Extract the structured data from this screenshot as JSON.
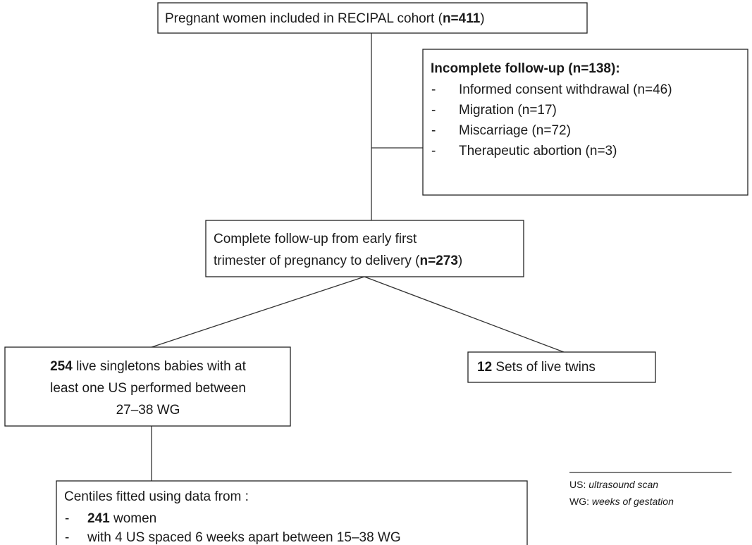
{
  "nodes": [
    {
      "parts": [
        "Pregnant women included in RECIPAL cohort (",
        "n=411",
        ")"
      ]
    },
    {
      "title": "Incomplete follow-up (n=138):",
      "bullet": "-",
      "items": [
        "Informed consent withdrawal (n=46)",
        "Migration (n=17)",
        "Miscarriage (n=72)",
        "Therapeutic abortion (n=3)"
      ]
    },
    {
      "lines": [
        "Complete follow-up from early first",
        "trimester of pregnancy to delivery  ("
      ],
      "count": "n=273",
      "close": ")"
    },
    {
      "count": "254",
      "lines": [
        " live singletons babies with at",
        "least one US performed between",
        "27–38 WG"
      ]
    },
    {
      "count": "12",
      "text": " Sets of live twins"
    },
    {
      "title": "Centiles fitted using data from :",
      "bullet": "-",
      "count": "241",
      "count_text": " women",
      "item": "with 4 US spaced 6 weeks apart between 15–38 WG"
    }
  ],
  "legend": [
    {
      "abbr": "US:",
      "meaning": "ultrasound scan"
    },
    {
      "abbr": "WG:",
      "meaning": "weeks of gestation"
    }
  ]
}
